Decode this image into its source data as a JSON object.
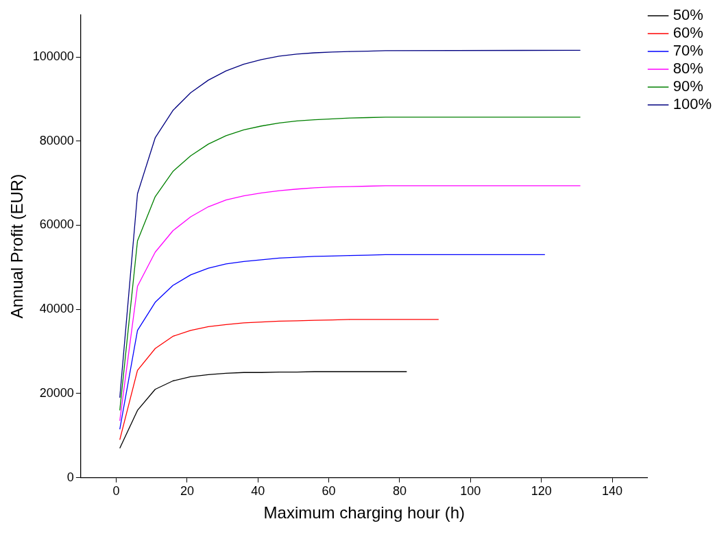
{
  "chart_data": {
    "type": "line",
    "xlabel": "Maximum charging hour (h)",
    "ylabel": "Annual Profit (EUR)",
    "xlim": [
      -10,
      150
    ],
    "xticks": [
      0,
      20,
      40,
      60,
      80,
      100,
      120,
      140
    ],
    "ylim": [
      0,
      110000
    ],
    "yticks": [
      0,
      20000,
      40000,
      60000,
      80000,
      100000
    ],
    "grid": false,
    "legend": "top right",
    "marker": "none",
    "line_style": "solid",
    "series": [
      {
        "name": "50%",
        "color": "#000000",
        "x": [
          1,
          6,
          11,
          16,
          21,
          26,
          31,
          36,
          41,
          46,
          51,
          56,
          82
        ],
        "values": [
          7000,
          16000,
          21000,
          23000,
          24000,
          24500,
          24800,
          25000,
          25000,
          25100,
          25100,
          25200,
          25200
        ]
      },
      {
        "name": "60%",
        "color": "#ff0000",
        "x": [
          1,
          6,
          11,
          16,
          21,
          26,
          31,
          36,
          41,
          46,
          51,
          56,
          61,
          66,
          91
        ],
        "values": [
          9000,
          25500,
          30700,
          33600,
          35000,
          35900,
          36400,
          36800,
          37000,
          37200,
          37300,
          37400,
          37500,
          37600,
          37600
        ]
      },
      {
        "name": "70%",
        "color": "#0000ff",
        "x": [
          1,
          6,
          11,
          16,
          21,
          26,
          31,
          36,
          41,
          46,
          51,
          56,
          61,
          66,
          71,
          76,
          121
        ],
        "values": [
          11500,
          35000,
          41700,
          45700,
          48200,
          49800,
          50800,
          51400,
          51800,
          52200,
          52400,
          52600,
          52700,
          52800,
          52900,
          53000,
          53000
        ]
      },
      {
        "name": "80%",
        "color": "#ff00ff",
        "x": [
          1,
          6,
          11,
          16,
          21,
          26,
          31,
          36,
          41,
          46,
          51,
          56,
          61,
          66,
          71,
          76,
          131
        ],
        "values": [
          13500,
          45500,
          53600,
          58700,
          62000,
          64400,
          66000,
          67000,
          67700,
          68200,
          68600,
          68900,
          69100,
          69200,
          69300,
          69400,
          69400
        ]
      },
      {
        "name": "90%",
        "color": "#008000",
        "x": [
          1,
          6,
          11,
          16,
          21,
          26,
          31,
          36,
          41,
          46,
          51,
          56,
          61,
          66,
          71,
          76,
          131
        ],
        "values": [
          16000,
          56300,
          66800,
          72800,
          76500,
          79300,
          81300,
          82700,
          83600,
          84300,
          84800,
          85100,
          85300,
          85500,
          85600,
          85700,
          85700
        ]
      },
      {
        "name": "100%",
        "color": "#000080",
        "x": [
          1,
          6,
          11,
          16,
          21,
          26,
          31,
          36,
          41,
          46,
          51,
          56,
          61,
          66,
          71,
          76,
          131
        ],
        "values": [
          19000,
          67500,
          80800,
          87300,
          91500,
          94500,
          96700,
          98300,
          99400,
          100200,
          100700,
          101000,
          101200,
          101300,
          101400,
          101500,
          101600
        ]
      }
    ]
  }
}
